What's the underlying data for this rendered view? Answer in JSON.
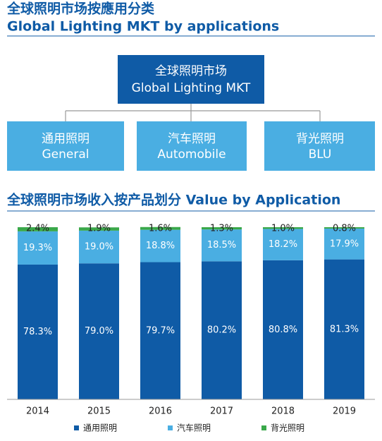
{
  "header": {
    "title_cn": "全球照明市场按應用分类",
    "title_en": "Global Lighting MKT by applications"
  },
  "diagram": {
    "root": {
      "label_cn": "全球照明市场",
      "label_en": "Global Lighting MKT"
    },
    "children": [
      {
        "label_cn": "通用照明",
        "label_en": "General"
      },
      {
        "label_cn": "汽车照明",
        "label_en": "Automobile"
      },
      {
        "label_cn": "背光照明",
        "label_en": "BLU"
      }
    ]
  },
  "chart_data": {
    "type": "stacked_bar",
    "title": "全球照明市场收入按产品划分 Value by Application",
    "categories": [
      "2014",
      "2015",
      "2016",
      "2017",
      "2018",
      "2019"
    ],
    "ylim": [
      0,
      100
    ],
    "series": [
      {
        "name": "通用照明",
        "color": "#0f5ba6",
        "values": [
          78.3,
          79.0,
          79.7,
          80.2,
          80.8,
          81.3
        ],
        "value_labels": [
          "78.3%",
          "79.0%",
          "79.7%",
          "80.2%",
          "80.8%",
          "81.3%"
        ]
      },
      {
        "name": "汽车照明",
        "color": "#4aaee2",
        "values": [
          19.3,
          19.0,
          18.8,
          18.5,
          18.2,
          17.9
        ],
        "value_labels": [
          "19.3%",
          "19.0%",
          "18.8%",
          "18.5%",
          "18.2%",
          "17.9%"
        ]
      },
      {
        "name": "背光照明",
        "color": "#3aa84a",
        "values": [
          2.4,
          1.9,
          1.6,
          1.3,
          1.0,
          0.8
        ],
        "value_labels": [
          "2.4%",
          "1.9%",
          "1.6%",
          "1.3%",
          "1.0%",
          "0.8%"
        ]
      }
    ]
  }
}
